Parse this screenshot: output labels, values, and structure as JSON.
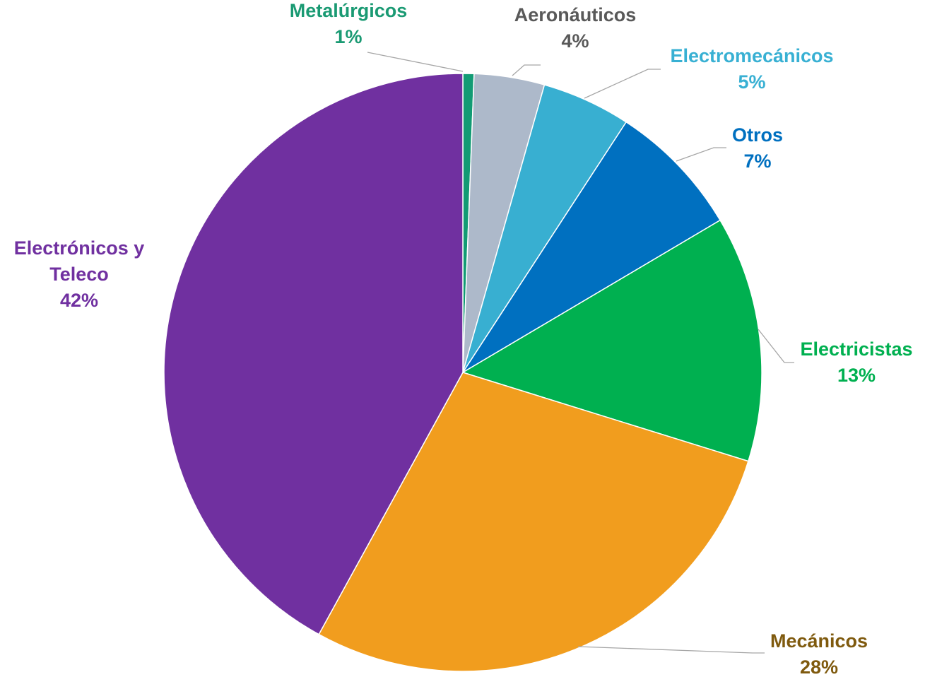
{
  "chart_data": {
    "type": "pie",
    "slices": [
      {
        "label": "Metalúrgicos",
        "value": 0.6,
        "pct": "1%",
        "color": "#129b74",
        "label_color": "#1a9a73"
      },
      {
        "label": "Aeronáuticos",
        "value": 3.8,
        "pct": "4%",
        "color": "#adb9ca",
        "label_color": "#595959"
      },
      {
        "label": "Electromecánicos",
        "value": 4.8,
        "pct": "5%",
        "color": "#38afd1",
        "label_color": "#38b0d3"
      },
      {
        "label": "Otros",
        "value": 7.3,
        "pct": "7%",
        "color": "#0070c0",
        "label_color": "#0070c0"
      },
      {
        "label": "Electricistas",
        "value": 13.3,
        "pct": "13%",
        "color": "#00b050",
        "label_color": "#00b050"
      },
      {
        "label": "Mecánicos",
        "value": 28.2,
        "pct": "28%",
        "color": "#f19d1e",
        "label_color": "#7f5a0e"
      },
      {
        "label": "Electrónicos y Teleco",
        "label_lines": [
          "Electrónicos y",
          "Teleco"
        ],
        "value": 42.0,
        "pct": "42%",
        "color": "#7030a0",
        "label_color": "#7030a0"
      }
    ],
    "start_angle_deg": 0,
    "direction": "clockwise",
    "leader_line_color": "#a6a6a6"
  }
}
